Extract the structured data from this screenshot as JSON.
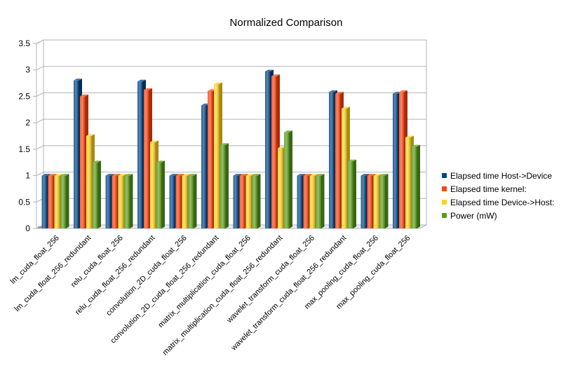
{
  "chart_data": {
    "type": "bar",
    "title": "Normalized Comparison",
    "xlabel": "",
    "ylabel": "",
    "ylim": [
      0,
      3.5
    ],
    "yticks": [
      "0",
      "0.5",
      "1",
      "1.5",
      "2",
      "2.5",
      "3",
      "3.5"
    ],
    "grid": true,
    "legend_position": "right",
    "categories": [
      "lm_cuda_float_256",
      "lm_cuda_float_256_redundant",
      "relu_cuda_float_256",
      "relu_cuda_float_256_redundant",
      "convolution_2D_cuda_float_256",
      "convolution_2D_cuda_float_256_redundant",
      "matrix_multiplication_cuda_float_256",
      "matrix_multiplication_cuda_float_256_redundant",
      "wavelet_transform_cuda_float_256",
      "wavelet_transform_cuda_float_256_redundant",
      "max_pooling_cuda_float_256",
      "max_pooling_cuda_float_256"
    ],
    "series": [
      {
        "name": "Elapsed time Host->Device",
        "color": "#004586",
        "values": [
          1,
          2.8,
          1,
          2.78,
          1,
          2.33,
          1,
          2.97,
          1,
          2.58,
          1,
          2.55
        ]
      },
      {
        "name": "Elapsed time kernel:",
        "color": "#ff420e",
        "values": [
          1,
          2.5,
          1,
          2.62,
          1,
          2.6,
          1,
          2.88,
          1,
          2.55,
          1,
          2.58
        ]
      },
      {
        "name": "Elapsed time Device->Host:",
        "color": "#ffd320",
        "values": [
          1,
          1.75,
          1,
          1.63,
          1,
          2.73,
          1,
          1.52,
          1,
          2.27,
          1,
          1.72
        ]
      },
      {
        "name": "Power (mW)",
        "color": "#579d1c",
        "values": [
          1,
          1.25,
          1,
          1.25,
          1,
          1.58,
          1,
          1.82,
          1,
          1.27,
          1,
          1.55
        ]
      }
    ]
  }
}
